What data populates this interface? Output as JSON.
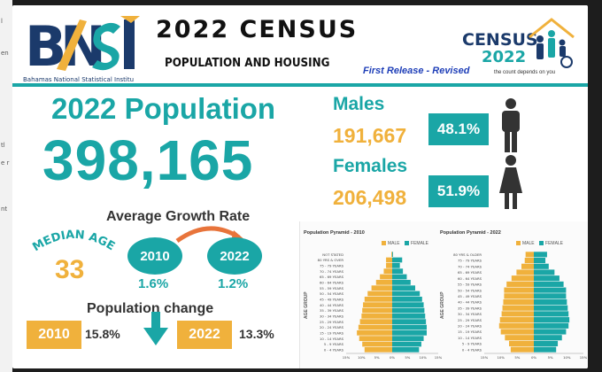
{
  "edge_peek": [
    "l",
    "en",
    "tl",
    "e r",
    "nt"
  ],
  "header": {
    "logo_caption": "Bahamas National Statistical Institu",
    "title": "2022 CENSUS",
    "subtitle": "POPULATION AND HOUSING",
    "release": "First Release - Revised",
    "census_logo": {
      "word": "CENSUS",
      "year": "2022",
      "tagline": "the count depends on you"
    }
  },
  "population": {
    "label": "2022 Population",
    "value": "398,165"
  },
  "males": {
    "label": "Males",
    "value": "191,667",
    "pct": "48.1%"
  },
  "females": {
    "label": "Females",
    "value": "206,498",
    "pct": "51.9%"
  },
  "median_age": {
    "label": "MEDIAN AGE",
    "value": "33"
  },
  "growth": {
    "title": "Average Growth Rate",
    "from_year": "2010",
    "from_rate": "1.6%",
    "to_year": "2022",
    "to_rate": "1.2%"
  },
  "change": {
    "title": "Population change",
    "y1": "2010",
    "v1": "15.8%",
    "y2": "2022",
    "v2": "13.3%"
  },
  "colors": {
    "teal": "#1aa6a6",
    "gold": "#f0b13c",
    "navy": "#1b3a6b",
    "text": "#333333"
  },
  "chart_data": [
    {
      "type": "bar",
      "title": "Population Pyramid - 2010",
      "legend": [
        "MALE",
        "FEMALE"
      ],
      "ylabel": "AGE GROUP",
      "categories": [
        "NOT STATED",
        "80 YRS & OVER",
        "75 - 79 YEARS",
        "70 - 74 YEARS",
        "65 - 69 YEARS",
        "60 - 64 YEARS",
        "55 - 59 YEARS",
        "50 - 54 YEARS",
        "45 - 49 YEARS",
        "40 - 44 YEARS",
        "35 - 39 YEARS",
        "30 - 34 YEARS",
        "25 - 29 YEARS",
        "20 - 24 YEARS",
        "15 - 19 YEARS",
        "10 - 14 YEARS",
        "5 - 9 YEARS",
        "0 - 4 YEARS"
      ],
      "series": [
        {
          "name": "MALE",
          "values": [
            0.1,
            0.8,
            0.8,
            1.1,
            1.6,
            2.1,
            2.7,
            3.2,
            3.6,
            3.8,
            3.9,
            4.0,
            4.2,
            4.4,
            4.6,
            4.3,
            3.9,
            3.6
          ]
        },
        {
          "name": "FEMALE",
          "values": [
            0.1,
            1.3,
            1.0,
            1.4,
            1.9,
            2.4,
            3.0,
            3.6,
            3.9,
            4.1,
            4.2,
            4.3,
            4.4,
            4.5,
            4.5,
            4.1,
            3.8,
            3.5
          ]
        }
      ],
      "ticks": [
        "15%",
        "10%",
        "5%",
        "0%",
        "5%",
        "10%",
        "15%"
      ]
    },
    {
      "type": "bar",
      "title": "Population Pyramid - 2022",
      "legend": [
        "MALE",
        "FEMALE"
      ],
      "ylabel": "AGE GROUP",
      "categories": [
        "80 YRS & OLDER",
        "75 - 79 YEARS",
        "70 - 74 YEARS",
        "65 - 69 YEARS",
        "60 - 64 YEARS",
        "55 - 59 YEARS",
        "50 - 54 YEARS",
        "45 - 49 YEARS",
        "40 - 44 YEARS",
        "35 - 39 YEARS",
        "30 - 34 YEARS",
        "25 - 29 YEARS",
        "20 - 24 YEARS",
        "15 - 19 YEARS",
        "10 - 14 YEARS",
        "5 - 9 YEARS",
        "0 - 4 YEARS"
      ],
      "series": [
        {
          "name": "MALE",
          "values": [
            1.0,
            1.1,
            1.5,
            2.1,
            2.7,
            3.3,
            3.6,
            3.6,
            3.7,
            3.8,
            3.9,
            4.1,
            4.2,
            4.0,
            3.5,
            3.0,
            2.8
          ]
        },
        {
          "name": "FEMALE",
          "values": [
            1.6,
            1.4,
            1.8,
            2.5,
            3.1,
            3.6,
            3.9,
            3.9,
            4.0,
            4.1,
            4.2,
            4.3,
            4.2,
            3.9,
            3.4,
            2.9,
            2.7
          ]
        }
      ],
      "ticks": [
        "15%",
        "10%",
        "5%",
        "0%",
        "5%",
        "10%",
        "15%"
      ]
    }
  ]
}
